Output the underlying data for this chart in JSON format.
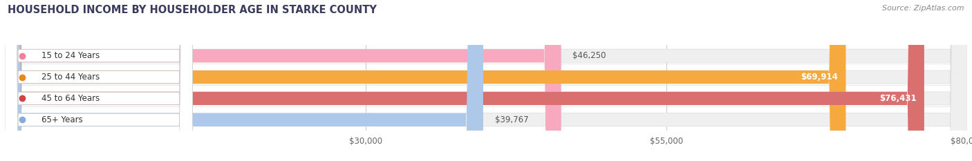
{
  "title": "HOUSEHOLD INCOME BY HOUSEHOLDER AGE IN STARKE COUNTY",
  "source": "Source: ZipAtlas.com",
  "categories": [
    "15 to 24 Years",
    "25 to 44 Years",
    "45 to 64 Years",
    "65+ Years"
  ],
  "values": [
    46250,
    69914,
    76431,
    39767
  ],
  "bar_colors": [
    "#f8a8bf",
    "#f5a93e",
    "#d96f6f",
    "#aec8ea"
  ],
  "bar_bg_color": "#efefef",
  "label_dot_colors": [
    "#f080a0",
    "#e8881a",
    "#cc4444",
    "#88aadd"
  ],
  "title_color": "#3a3a5c",
  "source_color": "#888888",
  "background_color": "#ffffff",
  "xlim_max": 80000,
  "xticks": [
    30000,
    55000,
    80000
  ],
  "xtick_labels": [
    "$30,000",
    "$55,000",
    "$80,000"
  ],
  "figsize": [
    14.06,
    2.33
  ],
  "dpi": 100
}
